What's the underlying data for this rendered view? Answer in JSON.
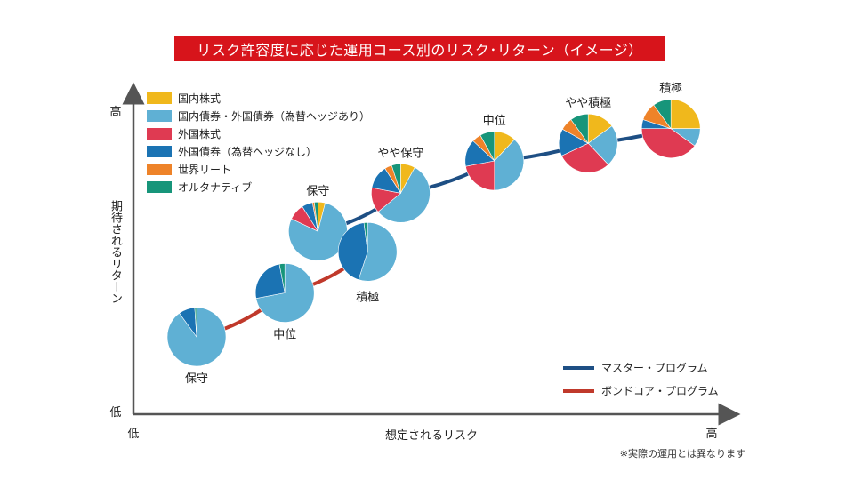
{
  "title": "リスク許容度に応じた運用コース別のリスク･リターン（イメージ）",
  "note": "※実際の運用とは異なります",
  "colors": {
    "title_bg": "#d7141b",
    "axis": "#555555",
    "master_line": "#1e4f84",
    "bondcore_line": "#c0392b"
  },
  "chart_data": {
    "type": "pie",
    "title": "リスク許容度に応じた運用コース別のリスク･リターン（イメージ）",
    "xlabel": "想定されるリスク",
    "ylabel": "期待されるリターン",
    "x_ticks": {
      "low": "低",
      "high": "高"
    },
    "y_ticks": {
      "low": "低",
      "high": "高"
    },
    "legend_placement": "top-left",
    "categories": [
      {
        "name": "国内株式",
        "color": "#f0b81c"
      },
      {
        "name": "国内債券・外国債券（為替ヘッジあり）",
        "color": "#5fb0d4"
      },
      {
        "name": "外国株式",
        "color": "#df3a52"
      },
      {
        "name": "外国債券（為替ヘッジなし）",
        "color": "#1b73b3"
      },
      {
        "name": "世界リート",
        "color": "#ee8329"
      },
      {
        "name": "オルタナティブ",
        "color": "#17957a"
      }
    ],
    "series": [
      {
        "name": "マスター・プログラム",
        "line_color": "#1e4f84",
        "points": [
          {
            "label": "保守",
            "risk": 0.27,
            "return": 0.46,
            "allocation": [
              4,
              78,
              9,
              6,
              1,
              2
            ]
          },
          {
            "label": "やや保守",
            "risk": 0.42,
            "return": 0.59,
            "allocation": [
              8,
              56,
              14,
              13,
              4,
              5
            ]
          },
          {
            "label": "中位",
            "risk": 0.59,
            "return": 0.7,
            "allocation": [
              12,
              38,
              22,
              15,
              5,
              8
            ]
          },
          {
            "label": "やや積極",
            "risk": 0.76,
            "return": 0.76,
            "allocation": [
              15,
              23,
              30,
              15,
              7,
              10
            ]
          },
          {
            "label": "積極",
            "risk": 0.91,
            "return": 0.81,
            "allocation": [
              25,
              10,
              40,
              5,
              10,
              10
            ]
          }
        ]
      },
      {
        "name": "ボンドコア・プログラム",
        "line_color": "#c0392b",
        "points": [
          {
            "label": "保守",
            "risk": 0.05,
            "return": 0.1,
            "allocation": [
              0,
              90,
              0,
              9,
              0,
              1
            ]
          },
          {
            "label": "中位",
            "risk": 0.21,
            "return": 0.25,
            "allocation": [
              0,
              72,
              0,
              25,
              0,
              3
            ]
          },
          {
            "label": "積極",
            "risk": 0.36,
            "return": 0.39,
            "allocation": [
              0,
              55,
              0,
              43,
              0,
              2
            ]
          }
        ]
      }
    ]
  }
}
